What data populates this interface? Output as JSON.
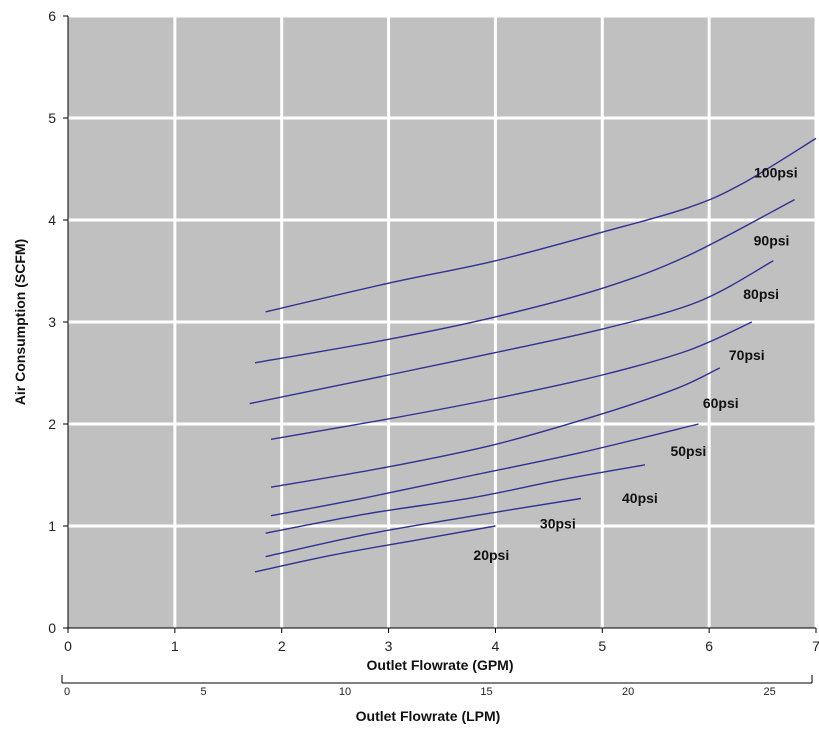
{
  "chart_data": {
    "type": "line",
    "xlabel": "Outlet Flowrate (GPM)",
    "ylabel": "Air Consumption (SCFM)",
    "xlim": [
      0,
      7
    ],
    "ylim": [
      0,
      6
    ],
    "x_ticks": [
      "0",
      "1",
      "2",
      "3",
      "4",
      "5",
      "6",
      "7"
    ],
    "y_ticks": [
      "0",
      "1",
      "2",
      "3",
      "4",
      "5",
      "6"
    ],
    "grid": true,
    "plot_background": "#c0c0c0",
    "grid_color": "#ffffff",
    "line_color": "#2e3192",
    "secondary_axis": {
      "label": "Outlet Flowrate (LPM)",
      "ticks": [
        "0",
        "5",
        "10",
        "15",
        "20",
        "25"
      ],
      "tick_values": [
        0,
        5,
        10,
        15,
        20,
        25
      ],
      "gpm_per_lpm": 0.26417
    },
    "series": [
      {
        "name": "20psi",
        "x": [
          1.75,
          2.5,
          3.25,
          4.0
        ],
        "y": [
          0.55,
          0.72,
          0.86,
          1.0
        ]
      },
      {
        "name": "30psi",
        "x": [
          1.85,
          2.8,
          3.8,
          4.8
        ],
        "y": [
          0.7,
          0.92,
          1.1,
          1.27
        ]
      },
      {
        "name": "40psi",
        "x": [
          1.85,
          2.8,
          3.8,
          4.6,
          5.4
        ],
        "y": [
          0.93,
          1.12,
          1.28,
          1.45,
          1.6
        ]
      },
      {
        "name": "50psi",
        "x": [
          1.9,
          2.8,
          3.8,
          4.8,
          5.9
        ],
        "y": [
          1.1,
          1.28,
          1.5,
          1.72,
          2.0
        ]
      },
      {
        "name": "60psi",
        "x": [
          1.9,
          3.0,
          4.0,
          5.0,
          5.7,
          6.1
        ],
        "y": [
          1.38,
          1.58,
          1.8,
          2.1,
          2.35,
          2.55
        ]
      },
      {
        "name": "70psi",
        "x": [
          1.9,
          3.0,
          4.0,
          5.0,
          5.8,
          6.4
        ],
        "y": [
          1.85,
          2.05,
          2.25,
          2.48,
          2.72,
          3.0
        ]
      },
      {
        "name": "80psi",
        "x": [
          1.7,
          3.0,
          4.0,
          5.0,
          5.9,
          6.6
        ],
        "y": [
          2.2,
          2.48,
          2.7,
          2.93,
          3.2,
          3.6
        ]
      },
      {
        "name": "90psi",
        "x": [
          1.75,
          3.0,
          4.0,
          5.0,
          5.8,
          6.8
        ],
        "y": [
          2.6,
          2.83,
          3.05,
          3.33,
          3.65,
          4.2
        ]
      },
      {
        "name": "100psi",
        "x": [
          1.85,
          3.0,
          4.0,
          5.0,
          5.8,
          6.3,
          7.0
        ],
        "y": [
          3.1,
          3.38,
          3.6,
          3.88,
          4.12,
          4.35,
          4.8
        ]
      }
    ]
  }
}
